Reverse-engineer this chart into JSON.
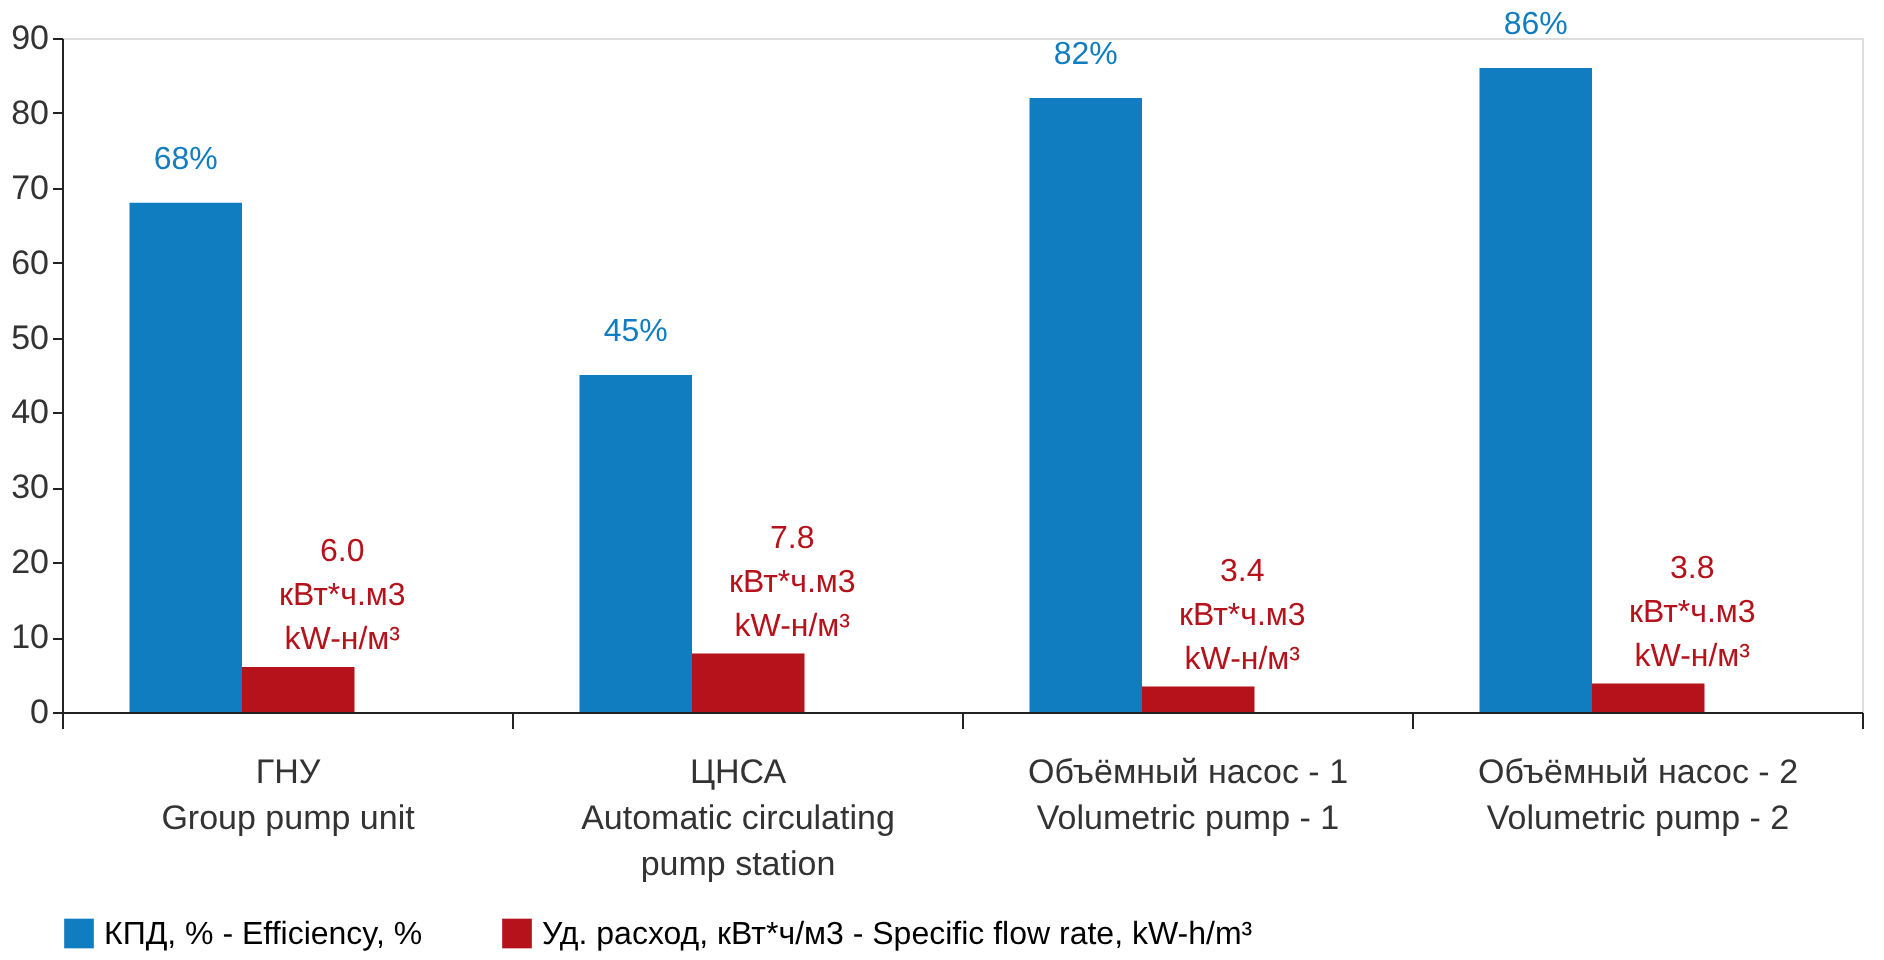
{
  "chart_data": {
    "type": "bar",
    "categories": [
      "ГНУ\nGroup pump unit",
      "ЦНСА\nAutomatic circulating\npump station",
      "Объёмный насос - 1\nVolumetric pump - 1",
      "Объёмный насос - 2\nVolumetric pump - 2"
    ],
    "series": [
      {
        "name": "КПД, %  -  Efficiency, %",
        "color": "#117dc1",
        "values": [
          68,
          45,
          82,
          86
        ],
        "value_labels": [
          "68%",
          "45%",
          "82%",
          "86%"
        ]
      },
      {
        "name": "Уд. расход, кВт*ч/м3  -  Specific flow rate, kW-h/m³",
        "color": "#b5121b",
        "values": [
          6.0,
          7.8,
          3.4,
          3.8
        ],
        "value_labels": [
          "6.0\nкВт*ч.м3\nkW-н/м³",
          "7.8\nкВт*ч.м3\nkW-н/м³",
          "3.4\nкВт*ч.м3\nkW-н/м³",
          "3.8\nкВт*ч.м3\nkW-н/м³"
        ]
      }
    ],
    "ylim": [
      0,
      90
    ],
    "yticks": [
      0,
      10,
      20,
      30,
      40,
      50,
      60,
      70,
      80,
      90
    ],
    "grid": false,
    "legend": "bottom"
  }
}
